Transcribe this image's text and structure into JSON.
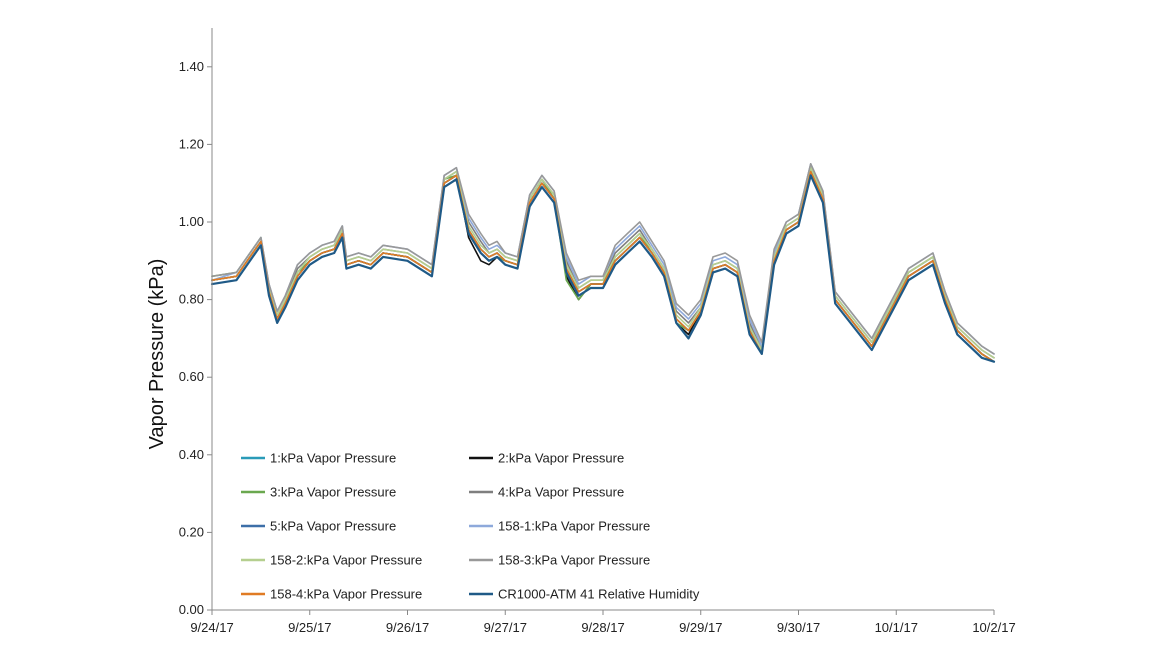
{
  "chart_data": {
    "type": "line",
    "title": "",
    "xlabel": "",
    "ylabel": "Vapor Pressure (kPa)",
    "ylim": [
      0,
      1.5
    ],
    "xlim": [
      "9/24/17",
      "10/2/17"
    ],
    "x_ticks": [
      "9/24/17",
      "9/25/17",
      "9/26/17",
      "9/27/17",
      "9/28/17",
      "9/29/17",
      "9/30/17",
      "10/1/17",
      "10/2/17"
    ],
    "y_ticks": [
      "0.00",
      "0.20",
      "0.40",
      "0.60",
      "0.80",
      "1.00",
      "1.20",
      "1.40"
    ],
    "grid": false,
    "legend_position": "bottom-left inside plot",
    "x": [
      "9/24/17 00:00",
      "9/24/17 06:00",
      "9/24/17 10:00",
      "9/24/17 12:00",
      "9/24/17 14:00",
      "9/24/17 16:00",
      "9/24/17 18:00",
      "9/24/17 21:00",
      "9/25/17 00:00",
      "9/25/17 03:00",
      "9/25/17 06:00",
      "9/25/17 08:00",
      "9/25/17 09:00",
      "9/25/17 12:00",
      "9/25/17 15:00",
      "9/25/17 18:00",
      "9/26/17 00:00",
      "9/26/17 06:00",
      "9/26/17 09:00",
      "9/26/17 12:00",
      "9/26/17 15:00",
      "9/26/17 18:00",
      "9/26/17 20:00",
      "9/26/17 22:00",
      "9/27/17 00:00",
      "9/27/17 03:00",
      "9/27/17 06:00",
      "9/27/17 09:00",
      "9/27/17 12:00",
      "9/27/17 15:00",
      "9/27/17 18:00",
      "9/27/17 21:00",
      "9/28/17 00:00",
      "9/28/17 03:00",
      "9/28/17 06:00",
      "9/28/17 09:00",
      "9/28/17 12:00",
      "9/28/17 15:00",
      "9/28/17 18:00",
      "9/28/17 21:00",
      "9/29/17 00:00",
      "9/29/17 03:00",
      "9/29/17 06:00",
      "9/29/17 09:00",
      "9/29/17 12:00",
      "9/29/17 15:00",
      "9/29/17 18:00",
      "9/29/17 21:00",
      "9/30/17 00:00",
      "9/30/17 03:00",
      "9/30/17 06:00",
      "9/30/17 09:00",
      "9/30/17 12:00",
      "9/30/17 15:00",
      "9/30/17 18:00",
      "9/30/17 21:00",
      "10/1/17 00:00",
      "10/1/17 03:00",
      "10/1/17 06:00",
      "10/1/17 09:00",
      "10/1/17 12:00",
      "10/1/17 15:00",
      "10/1/17 18:00",
      "10/1/17 21:00",
      "10/2/17 00:00"
    ],
    "series": [
      {
        "name": "1:kPa Vapor Pressure",
        "color": "#2a9bb8",
        "values": [
          0.85,
          0.86,
          0.92,
          0.95,
          0.82,
          0.75,
          0.79,
          0.86,
          0.9,
          0.92,
          0.93,
          0.97,
          0.89,
          0.9,
          0.89,
          0.92,
          0.91,
          0.87,
          1.1,
          1.12,
          0.98,
          0.93,
          0.91,
          0.92,
          0.9,
          0.89,
          1.05,
          1.1,
          1.06,
          0.88,
          0.82,
          0.84,
          0.84,
          0.9,
          0.93,
          0.96,
          0.92,
          0.87,
          0.75,
          0.72,
          0.77,
          0.88,
          0.89,
          0.87,
          0.72,
          0.66,
          0.9,
          0.98,
          1.0,
          1.13,
          1.06,
          0.8,
          0.76,
          0.72,
          0.68,
          0.74,
          0.8,
          0.86,
          0.88,
          0.9,
          0.8,
          0.72,
          0.69,
          0.66,
          0.64
        ]
      },
      {
        "name": "2:kPa Vapor Pressure",
        "color": "#111111",
        "values": [
          0.85,
          0.86,
          0.92,
          0.95,
          0.82,
          0.75,
          0.78,
          0.86,
          0.9,
          0.92,
          0.93,
          0.97,
          0.89,
          0.9,
          0.89,
          0.92,
          0.91,
          0.87,
          1.1,
          1.12,
          0.96,
          0.9,
          0.89,
          0.91,
          0.9,
          0.89,
          1.05,
          1.1,
          1.06,
          0.86,
          0.8,
          0.84,
          0.84,
          0.9,
          0.93,
          0.96,
          0.92,
          0.87,
          0.74,
          0.71,
          0.77,
          0.88,
          0.89,
          0.87,
          0.72,
          0.66,
          0.9,
          0.98,
          1.0,
          1.13,
          1.06,
          0.8,
          0.76,
          0.72,
          0.68,
          0.74,
          0.8,
          0.86,
          0.88,
          0.9,
          0.8,
          0.72,
          0.69,
          0.66,
          0.64
        ]
      },
      {
        "name": "3:kPa Vapor Pressure",
        "color": "#6aa84f",
        "values": [
          0.86,
          0.87,
          0.93,
          0.96,
          0.82,
          0.75,
          0.79,
          0.87,
          0.9,
          0.92,
          0.93,
          0.97,
          0.89,
          0.9,
          0.89,
          0.92,
          0.91,
          0.87,
          1.11,
          1.12,
          0.97,
          0.92,
          0.9,
          0.91,
          0.9,
          0.89,
          1.06,
          1.11,
          1.06,
          0.85,
          0.8,
          0.84,
          0.84,
          0.91,
          0.94,
          0.97,
          0.92,
          0.87,
          0.74,
          0.72,
          0.77,
          0.88,
          0.89,
          0.87,
          0.72,
          0.66,
          0.9,
          0.98,
          1.0,
          1.13,
          1.06,
          0.8,
          0.76,
          0.72,
          0.68,
          0.74,
          0.8,
          0.87,
          0.89,
          0.91,
          0.8,
          0.72,
          0.69,
          0.66,
          0.64
        ]
      },
      {
        "name": "4:kPa Vapor Pressure",
        "color": "#7f7f7f",
        "values": [
          0.85,
          0.86,
          0.92,
          0.95,
          0.83,
          0.76,
          0.8,
          0.88,
          0.91,
          0.93,
          0.94,
          0.98,
          0.9,
          0.91,
          0.9,
          0.93,
          0.92,
          0.88,
          1.11,
          1.13,
          1.0,
          0.95,
          0.92,
          0.93,
          0.91,
          0.9,
          1.06,
          1.11,
          1.07,
          0.9,
          0.83,
          0.85,
          0.85,
          0.92,
          0.95,
          0.98,
          0.93,
          0.88,
          0.77,
          0.74,
          0.78,
          0.89,
          0.9,
          0.88,
          0.74,
          0.67,
          0.91,
          0.99,
          1.01,
          1.14,
          1.07,
          0.81,
          0.77,
          0.73,
          0.69,
          0.75,
          0.81,
          0.87,
          0.89,
          0.91,
          0.81,
          0.73,
          0.7,
          0.67,
          0.65
        ]
      },
      {
        "name": "5:kPa Vapor Pressure",
        "color": "#3d6fa8",
        "values": [
          0.85,
          0.86,
          0.92,
          0.95,
          0.82,
          0.75,
          0.79,
          0.86,
          0.9,
          0.92,
          0.93,
          0.97,
          0.89,
          0.9,
          0.89,
          0.92,
          0.91,
          0.87,
          1.1,
          1.12,
          0.98,
          0.93,
          0.91,
          0.92,
          0.9,
          0.89,
          1.05,
          1.1,
          1.06,
          0.88,
          0.82,
          0.84,
          0.84,
          0.9,
          0.93,
          0.96,
          0.92,
          0.87,
          0.75,
          0.72,
          0.77,
          0.88,
          0.89,
          0.87,
          0.72,
          0.66,
          0.9,
          0.98,
          1.0,
          1.13,
          1.06,
          0.8,
          0.76,
          0.72,
          0.68,
          0.74,
          0.8,
          0.86,
          0.88,
          0.9,
          0.8,
          0.72,
          0.69,
          0.66,
          0.64
        ]
      },
      {
        "name": "158-1:kPa Vapor Pressure",
        "color": "#8ea9db",
        "values": [
          0.85,
          0.87,
          0.93,
          0.96,
          0.84,
          0.77,
          0.81,
          0.89,
          0.92,
          0.94,
          0.95,
          0.99,
          0.91,
          0.92,
          0.91,
          0.94,
          0.93,
          0.89,
          1.12,
          1.14,
          1.01,
          0.96,
          0.93,
          0.94,
          0.92,
          0.91,
          1.07,
          1.12,
          1.08,
          0.91,
          0.84,
          0.86,
          0.86,
          0.93,
          0.96,
          0.99,
          0.94,
          0.89,
          0.78,
          0.75,
          0.79,
          0.9,
          0.91,
          0.89,
          0.75,
          0.68,
          0.92,
          1.0,
          1.02,
          1.15,
          1.08,
          0.82,
          0.78,
          0.74,
          0.7,
          0.76,
          0.82,
          0.88,
          0.9,
          0.92,
          0.82,
          0.74,
          0.71,
          0.68,
          0.66
        ]
      },
      {
        "name": "158-2:kPa Vapor Pressure",
        "color": "#b5cf8f",
        "values": [
          0.85,
          0.86,
          0.92,
          0.95,
          0.83,
          0.76,
          0.8,
          0.87,
          0.91,
          0.93,
          0.94,
          0.98,
          0.9,
          0.91,
          0.9,
          0.93,
          0.92,
          0.88,
          1.11,
          1.13,
          0.99,
          0.94,
          0.92,
          0.93,
          0.91,
          0.9,
          1.06,
          1.11,
          1.07,
          0.89,
          0.83,
          0.85,
          0.85,
          0.91,
          0.94,
          0.97,
          0.93,
          0.88,
          0.76,
          0.73,
          0.78,
          0.89,
          0.9,
          0.88,
          0.73,
          0.67,
          0.91,
          0.99,
          1.01,
          1.14,
          1.07,
          0.81,
          0.77,
          0.73,
          0.69,
          0.75,
          0.81,
          0.87,
          0.89,
          0.91,
          0.81,
          0.73,
          0.7,
          0.67,
          0.65
        ]
      },
      {
        "name": "158-3:kPa Vapor Pressure",
        "color": "#999999",
        "values": [
          0.86,
          0.87,
          0.93,
          0.96,
          0.84,
          0.77,
          0.81,
          0.89,
          0.92,
          0.94,
          0.95,
          0.99,
          0.91,
          0.92,
          0.91,
          0.94,
          0.93,
          0.89,
          1.12,
          1.14,
          1.02,
          0.97,
          0.94,
          0.95,
          0.92,
          0.91,
          1.07,
          1.12,
          1.08,
          0.92,
          0.85,
          0.86,
          0.86,
          0.94,
          0.97,
          1.0,
          0.95,
          0.9,
          0.79,
          0.76,
          0.8,
          0.91,
          0.92,
          0.9,
          0.76,
          0.69,
          0.93,
          1.0,
          1.02,
          1.15,
          1.08,
          0.82,
          0.78,
          0.74,
          0.7,
          0.76,
          0.82,
          0.88,
          0.9,
          0.92,
          0.82,
          0.74,
          0.71,
          0.68,
          0.66
        ]
      },
      {
        "name": "158-4:kPa Vapor Pressure",
        "color": "#e07b24",
        "values": [
          0.85,
          0.86,
          0.92,
          0.95,
          0.82,
          0.75,
          0.79,
          0.86,
          0.9,
          0.92,
          0.93,
          0.97,
          0.89,
          0.9,
          0.89,
          0.92,
          0.91,
          0.87,
          1.1,
          1.12,
          0.98,
          0.93,
          0.91,
          0.92,
          0.9,
          0.89,
          1.05,
          1.1,
          1.06,
          0.88,
          0.82,
          0.84,
          0.84,
          0.9,
          0.93,
          0.96,
          0.92,
          0.87,
          0.75,
          0.72,
          0.77,
          0.88,
          0.89,
          0.87,
          0.72,
          0.66,
          0.9,
          0.98,
          1.0,
          1.13,
          1.06,
          0.8,
          0.76,
          0.72,
          0.68,
          0.74,
          0.8,
          0.86,
          0.88,
          0.9,
          0.8,
          0.72,
          0.69,
          0.66,
          0.64
        ]
      },
      {
        "name": "CR1000-ATM 41 Relative Humidity",
        "color": "#1f5a87",
        "values": [
          0.84,
          0.85,
          0.91,
          0.94,
          0.81,
          0.74,
          0.78,
          0.85,
          0.89,
          0.91,
          0.92,
          0.96,
          0.88,
          0.89,
          0.88,
          0.91,
          0.9,
          0.86,
          1.09,
          1.11,
          0.97,
          0.92,
          0.9,
          0.91,
          0.89,
          0.88,
          1.04,
          1.09,
          1.05,
          0.87,
          0.81,
          0.83,
          0.83,
          0.89,
          0.92,
          0.95,
          0.91,
          0.86,
          0.74,
          0.7,
          0.76,
          0.87,
          0.88,
          0.86,
          0.71,
          0.66,
          0.89,
          0.97,
          0.99,
          1.12,
          1.05,
          0.79,
          0.75,
          0.71,
          0.67,
          0.73,
          0.79,
          0.85,
          0.87,
          0.89,
          0.79,
          0.71,
          0.68,
          0.65,
          0.64
        ]
      }
    ]
  }
}
